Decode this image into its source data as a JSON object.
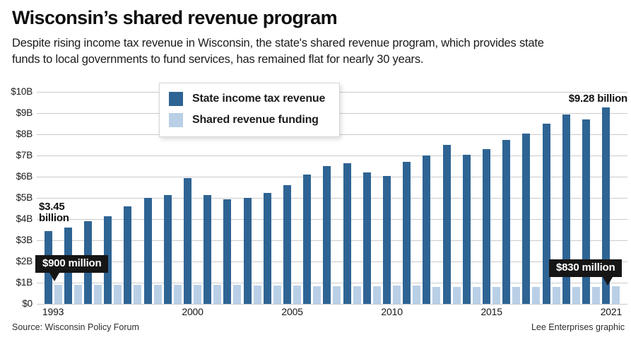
{
  "header": {
    "title": "Wisconsin’s shared revenue program",
    "subtitle_line1": "Despite rising income tax revenue in Wisconsin, the state's shared revenue program, which provides state",
    "subtitle_line2": "funds to local governments to fund services, has remained flat for nearly 30 years."
  },
  "chart_data": {
    "type": "bar",
    "title": "Wisconsin’s shared revenue program",
    "value_unit": "billions of dollars",
    "categories": [
      1993,
      1994,
      1995,
      1996,
      1997,
      1998,
      1999,
      2000,
      2001,
      2002,
      2003,
      2004,
      2005,
      2006,
      2007,
      2008,
      2009,
      2010,
      2011,
      2012,
      2013,
      2014,
      2015,
      2016,
      2017,
      2018,
      2019,
      2020,
      2021
    ],
    "series": [
      {
        "name": "State income tax revenue",
        "color": "#2e6494",
        "values": [
          3.45,
          3.6,
          3.9,
          4.15,
          4.6,
          5.0,
          5.15,
          5.95,
          5.15,
          4.95,
          5.0,
          5.25,
          5.6,
          6.1,
          6.5,
          6.65,
          6.2,
          6.05,
          6.7,
          7.0,
          7.5,
          7.05,
          7.3,
          7.75,
          8.05,
          8.5,
          8.95,
          8.7,
          9.28
        ]
      },
      {
        "name": "Shared revenue funding",
        "color": "#b9cfe6",
        "values": [
          0.9,
          0.9,
          0.9,
          0.9,
          0.9,
          0.9,
          0.9,
          0.9,
          0.9,
          0.9,
          0.88,
          0.88,
          0.86,
          0.85,
          0.85,
          0.85,
          0.85,
          0.88,
          0.88,
          0.8,
          0.8,
          0.8,
          0.8,
          0.8,
          0.8,
          0.8,
          0.8,
          0.8,
          0.83
        ]
      }
    ],
    "ylim": [
      0,
      10
    ],
    "y_ticks": [
      "$10B",
      "$9B",
      "$8B",
      "$7B",
      "$6B",
      "$5B",
      "$4B",
      "$3B",
      "$2B",
      "$1B",
      "$0"
    ],
    "x_tick_labels": [
      {
        "index": 0,
        "label": "1993"
      },
      {
        "index": 7,
        "label": "2000"
      },
      {
        "index": 12,
        "label": "2005"
      },
      {
        "index": 17,
        "label": "2010"
      },
      {
        "index": 22,
        "label": "2015"
      },
      {
        "index": 28,
        "label": "2021"
      }
    ],
    "grid": "horizontal",
    "legend_position": "top-left-inset",
    "annotations": {
      "first_income": {
        "line1": "$3.45",
        "line2": "billion"
      },
      "first_shared": {
        "text": "$900 million"
      },
      "last_income": {
        "text": "$9.28 billion"
      },
      "last_shared": {
        "text": "$830 million"
      }
    }
  },
  "footer": {
    "source": "Source: Wisconsin Policy Forum",
    "credit": "Lee Enterprises graphic"
  }
}
